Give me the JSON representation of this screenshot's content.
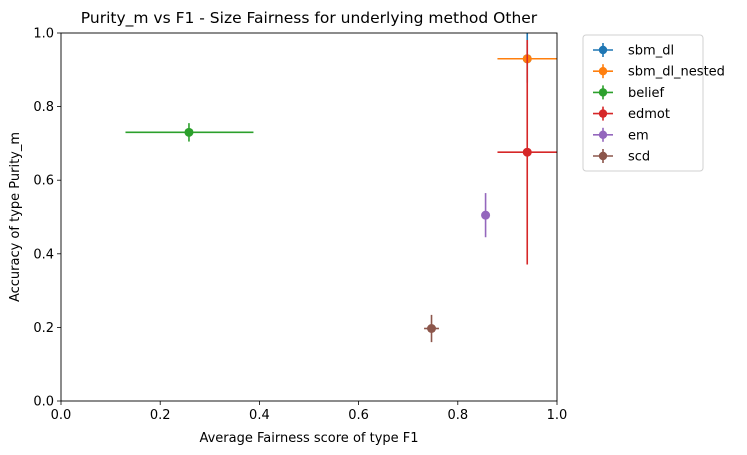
{
  "chart_data": {
    "type": "scatter",
    "title": "Purity_m vs F1 - Size Fairness for underlying method Other",
    "xlabel": "Average Fairness score of type F1",
    "ylabel": "Accuracy of type Purity_m",
    "xlim": [
      0.0,
      1.0
    ],
    "ylim": [
      0.0,
      1.0
    ],
    "xticks": [
      "0.0",
      "0.2",
      "0.4",
      "0.6",
      "0.8",
      "1.0"
    ],
    "yticks": [
      "0.0",
      "0.2",
      "0.4",
      "0.6",
      "0.8",
      "1.0"
    ],
    "grid": false,
    "legend_position": "outside-right",
    "series": [
      {
        "name": "sbm_dl",
        "color": "#1f77b4",
        "x": 0.94,
        "y": 0.93,
        "xerr": [
          0.06,
          0.06
        ],
        "yerr": [
          0.065,
          0.07
        ]
      },
      {
        "name": "sbm_dl_nested",
        "color": "#ff7f0e",
        "x": 0.94,
        "y": 0.93,
        "xerr": [
          0.06,
          0.06
        ],
        "yerr": [
          0.0,
          0.0
        ]
      },
      {
        "name": "belief",
        "color": "#2ca02c",
        "x": 0.258,
        "y": 0.73,
        "xerr": [
          0.128,
          0.13
        ],
        "yerr": [
          0.025,
          0.025
        ]
      },
      {
        "name": "edmot",
        "color": "#d62728",
        "x": 0.94,
        "y": 0.676,
        "xerr": [
          0.06,
          0.06
        ],
        "yerr": [
          0.305,
          0.305
        ]
      },
      {
        "name": "em",
        "color": "#9467bd",
        "x": 0.856,
        "y": 0.505,
        "xerr": [
          0.0,
          0.0
        ],
        "yerr": [
          0.06,
          0.06
        ]
      },
      {
        "name": "scd",
        "color": "#8c564b",
        "x": 0.747,
        "y": 0.197,
        "xerr": [
          0.015,
          0.015
        ],
        "yerr": [
          0.037,
          0.037
        ]
      }
    ]
  }
}
